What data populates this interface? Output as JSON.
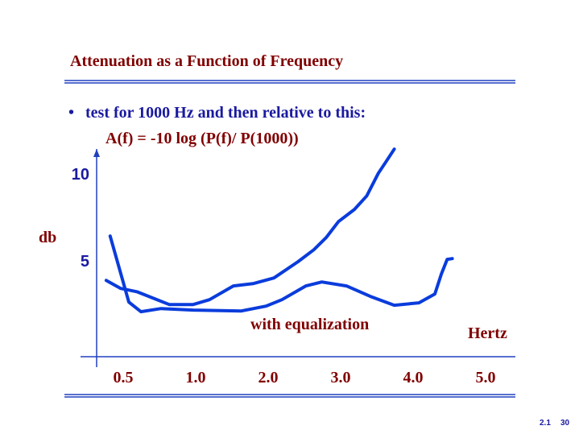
{
  "chart_data": {
    "type": "line",
    "title": "Attenuation as a Function of Frequency",
    "bullet": "test for 1000 Hz and then relative to this:",
    "formula": "A(f) = -10 log (P(f)/ P(1000))",
    "ylabel": "db",
    "xlabel": "Hertz",
    "annotation": "with equalization",
    "footer": [
      "2.1",
      "30"
    ],
    "xlim": [
      0.317,
      5.41
    ],
    "xticks": [
      0.5,
      {
        "value": 1,
        "label": "1.0"
      },
      {
        "value": 2,
        "label": "2.0"
      },
      {
        "value": 3,
        "label": "3.0"
      },
      {
        "value": 4,
        "label": "4.0"
      },
      {
        "value": 5,
        "label": "5.0"
      }
    ],
    "ylim": [
      -0.55,
      11.4
    ],
    "yticks": [
      5,
      10
    ],
    "series": [
      {
        "color": "#0a3cdc",
        "x": [
          0.41,
          0.539,
          0.622,
          0.761,
          0.983,
          1.63,
          1.97,
          2.19,
          2.52,
          2.74,
          3.08,
          3.41,
          3.74,
          4.08,
          4.3,
          4.39,
          4.47,
          4.54
        ],
        "values": [
          6.39,
          2.59,
          2.04,
          2.22,
          2.13,
          2.08,
          2.36,
          2.73,
          3.52,
          3.75,
          3.52,
          2.92,
          2.41,
          2.55,
          3.06,
          4.21,
          5.05,
          5.09
        ]
      },
      {
        "color": "#0a3cdc",
        "x": [
          0.383,
          0.483,
          0.594,
          0.706,
          0.817,
          0.983,
          1.19,
          1.52,
          1.8,
          2.08,
          2.41,
          2.63,
          2.8,
          2.97,
          3.19,
          3.36,
          3.52,
          3.63,
          3.74
        ],
        "values": [
          3.84,
          3.38,
          3.19,
          2.82,
          2.45,
          2.45,
          2.73,
          3.52,
          3.66,
          3.98,
          4.91,
          5.6,
          6.3,
          7.22,
          7.92,
          8.7,
          10.0,
          10.69,
          11.39
        ]
      }
    ]
  }
}
